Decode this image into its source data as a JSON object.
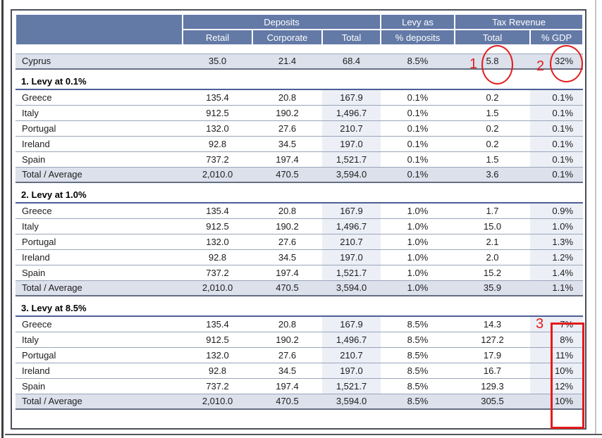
{
  "table": {
    "header": {
      "deposits_group": "Deposits",
      "retail": "Retail",
      "corporate": "Corporate",
      "deposits_total": "Total",
      "levy_line1": "Levy as",
      "levy_line2": "% deposits",
      "tax_revenue_group": "Tax Revenue",
      "tax_total": "Total",
      "gdp": "% GDP"
    },
    "cyprus_row": [
      "Cyprus",
      "35.0",
      "21.4",
      "68.4",
      "8.5%",
      "5.8",
      "32%"
    ],
    "sections": [
      {
        "title": "1. Levy at 0.1%",
        "rows": [
          [
            "Greece",
            "135.4",
            "20.8",
            "167.9",
            "0.1%",
            "0.2",
            "0.1%"
          ],
          [
            "Italy",
            "912.5",
            "190.2",
            "1,496.7",
            "0.1%",
            "1.5",
            "0.1%"
          ],
          [
            "Portugal",
            "132.0",
            "27.6",
            "210.7",
            "0.1%",
            "0.2",
            "0.1%"
          ],
          [
            "Ireland",
            "92.8",
            "34.5",
            "197.0",
            "0.1%",
            "0.2",
            "0.1%"
          ],
          [
            "Spain",
            "737.2",
            "197.4",
            "1,521.7",
            "0.1%",
            "1.5",
            "0.1%"
          ],
          [
            "Total / Average",
            "2,010.0",
            "470.5",
            "3,594.0",
            "0.1%",
            "3.6",
            "0.1%"
          ]
        ]
      },
      {
        "title": "2. Levy at 1.0%",
        "rows": [
          [
            "Greece",
            "135.4",
            "20.8",
            "167.9",
            "1.0%",
            "1.7",
            "0.9%"
          ],
          [
            "Italy",
            "912.5",
            "190.2",
            "1,496.7",
            "1.0%",
            "15.0",
            "1.0%"
          ],
          [
            "Portugal",
            "132.0",
            "27.6",
            "210.7",
            "1.0%",
            "2.1",
            "1.3%"
          ],
          [
            "Ireland",
            "92.8",
            "34.5",
            "197.0",
            "1.0%",
            "2.0",
            "1.2%"
          ],
          [
            "Spain",
            "737.2",
            "197.4",
            "1,521.7",
            "1.0%",
            "15.2",
            "1.4%"
          ],
          [
            "Total / Average",
            "2,010.0",
            "470.5",
            "3,594.0",
            "1.0%",
            "35.9",
            "1.1%"
          ]
        ]
      },
      {
        "title": "3. Levy at 8.5%",
        "rows": [
          [
            "Greece",
            "135.4",
            "20.8",
            "167.9",
            "8.5%",
            "14.3",
            "7%"
          ],
          [
            "Italy",
            "912.5",
            "190.2",
            "1,496.7",
            "8.5%",
            "127.2",
            "8%"
          ],
          [
            "Portugal",
            "132.0",
            "27.6",
            "210.7",
            "8.5%",
            "17.9",
            "11%"
          ],
          [
            "Ireland",
            "92.8",
            "34.5",
            "197.0",
            "8.5%",
            "16.7",
            "10%"
          ],
          [
            "Spain",
            "737.2",
            "197.4",
            "1,521.7",
            "8.5%",
            "129.3",
            "12%"
          ],
          [
            "Total / Average",
            "2,010.0",
            "470.5",
            "3,594.0",
            "8.5%",
            "305.5",
            "10%"
          ]
        ]
      }
    ]
  },
  "annotations": {
    "circle_1": {
      "label": "1"
    },
    "circle_2": {
      "label": "2"
    },
    "box_3": {
      "label": "3"
    }
  },
  "colors": {
    "header_bg": "#6379a6",
    "row_shade": "#dce1ec",
    "column_shade": "#eceff6",
    "annotation_red": "#e31c1c"
  }
}
